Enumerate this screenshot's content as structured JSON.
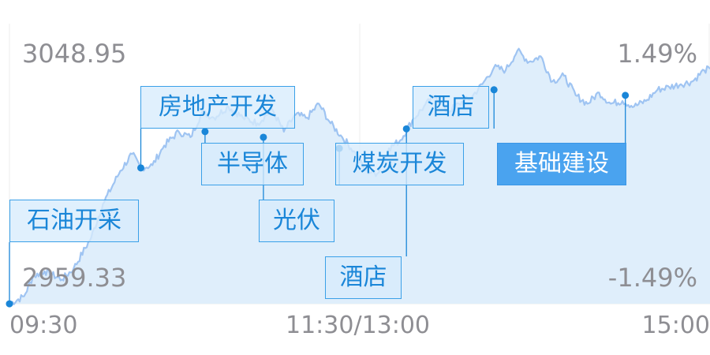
{
  "chart_data": {
    "type": "area",
    "title": "",
    "x_ticks": [
      "09:30",
      "11:30/13:00",
      "15:00"
    ],
    "ylim": [
      2959.33,
      3048.95
    ],
    "y_left_labels": {
      "top": "3048.95",
      "bottom": "2959.33"
    },
    "y_right_labels": {
      "top": "1.49%",
      "bottom": "-1.49%"
    },
    "grid": true,
    "line_color": "#9fc4f2",
    "fill_color": "#dfeefb",
    "accent_color": "#1a86d8",
    "series": [
      {
        "minutes": [
          0,
          5,
          8,
          12,
          18,
          22,
          28,
          32,
          38,
          42,
          45,
          49,
          53,
          58,
          62,
          66,
          70,
          75,
          80,
          85,
          90,
          94,
          98,
          102,
          106,
          110,
          114,
          118,
          122,
          126,
          130,
          134,
          138,
          142,
          146,
          150,
          154,
          158,
          162,
          166,
          170,
          174,
          178,
          182,
          186,
          190,
          194,
          198,
          202,
          206,
          210,
          214,
          218,
          222,
          226,
          230,
          234,
          238,
          240
        ],
        "values": [
          2959.3,
          2962.0,
          2969.0,
          2971.0,
          2968.0,
          2972.0,
          2983.0,
          2995.0,
          3007.0,
          3013.0,
          3008.0,
          3009.0,
          3016.0,
          3021.0,
          3019.0,
          3028.0,
          3026.0,
          3030.0,
          3026.0,
          3024.0,
          3029.0,
          3021.0,
          3027.0,
          3026.0,
          3031.0,
          3024.0,
          3019.0,
          3014.0,
          3007.0,
          3006.0,
          3015.0,
          3018.0,
          3025.0,
          3030.0,
          3034.0,
          3028.0,
          3031.0,
          3033.0,
          3038.0,
          3044.0,
          3043.0,
          3050.0,
          3046.0,
          3048.0,
          3039.0,
          3041.0,
          3034.0,
          3031.0,
          3035.0,
          3031.0,
          3032.0,
          3030.0,
          3032.0,
          3036.0,
          3037.0,
          3038.0,
          3039.0,
          3043.0,
          3043.5
        ]
      }
    ],
    "annotations": [
      {
        "label": "石油开采",
        "minute": 0,
        "value": 2959.3,
        "selected": false
      },
      {
        "label": "房地产开发",
        "minute": 45,
        "value": 3008.0,
        "selected": false
      },
      {
        "label": "半导体",
        "minute": 67,
        "value": 3021.0,
        "selected": false
      },
      {
        "label": "光伏",
        "minute": 87,
        "value": 3019.0,
        "selected": false
      },
      {
        "label": "煤炭开发",
        "minute": 113,
        "value": 3015.0,
        "selected": false
      },
      {
        "label": "酒店",
        "minute": 136,
        "value": 3022.0,
        "selected": false
      },
      {
        "label": "酒店",
        "minute": 166,
        "value": 3036.0,
        "selected": false
      },
      {
        "label": "基础建设",
        "minute": 211,
        "value": 3034.0,
        "selected": true
      }
    ]
  }
}
